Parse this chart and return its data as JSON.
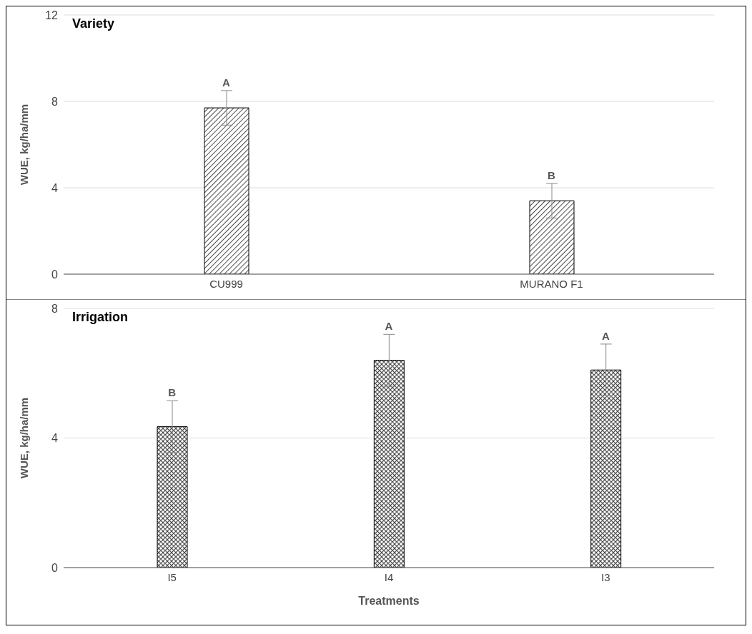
{
  "chart_data": [
    {
      "type": "bar",
      "title": "Variety",
      "ylabel": "WUE, kg/ha/mm",
      "categories": [
        "CU999",
        "MURANO F1"
      ],
      "values": [
        7.7,
        3.4
      ],
      "errors": [
        0.8,
        0.8
      ],
      "color": "#000000",
      "ylim": [
        0,
        12
      ],
      "yticks": [
        0,
        4,
        8,
        12
      ],
      "grid": "y",
      "annotations": [
        {
          "text": "A",
          "x": "CU999",
          "y": 8.5
        },
        {
          "text": "B",
          "x": "MURANO F1",
          "y": 4.2
        }
      ]
    },
    {
      "type": "bar",
      "title": "Irrigation",
      "ylabel": "WUE, kg/ha/mm",
      "xlabel": "Treatments",
      "categories": [
        "I5",
        "I4",
        "I3"
      ],
      "values": [
        4.35,
        6.4,
        6.1
      ],
      "errors": [
        0.8,
        0.8,
        0.8
      ],
      "color": "#000000",
      "ylim": [
        0,
        8
      ],
      "yticks": [
        0,
        4,
        8
      ],
      "grid": "y",
      "annotations": [
        {
          "text": "B",
          "x": "I5",
          "y": 5.15
        },
        {
          "text": "A",
          "x": "I4",
          "y": 7.2
        },
        {
          "text": "A",
          "x": "I3",
          "y": 6.9
        }
      ]
    }
  ]
}
